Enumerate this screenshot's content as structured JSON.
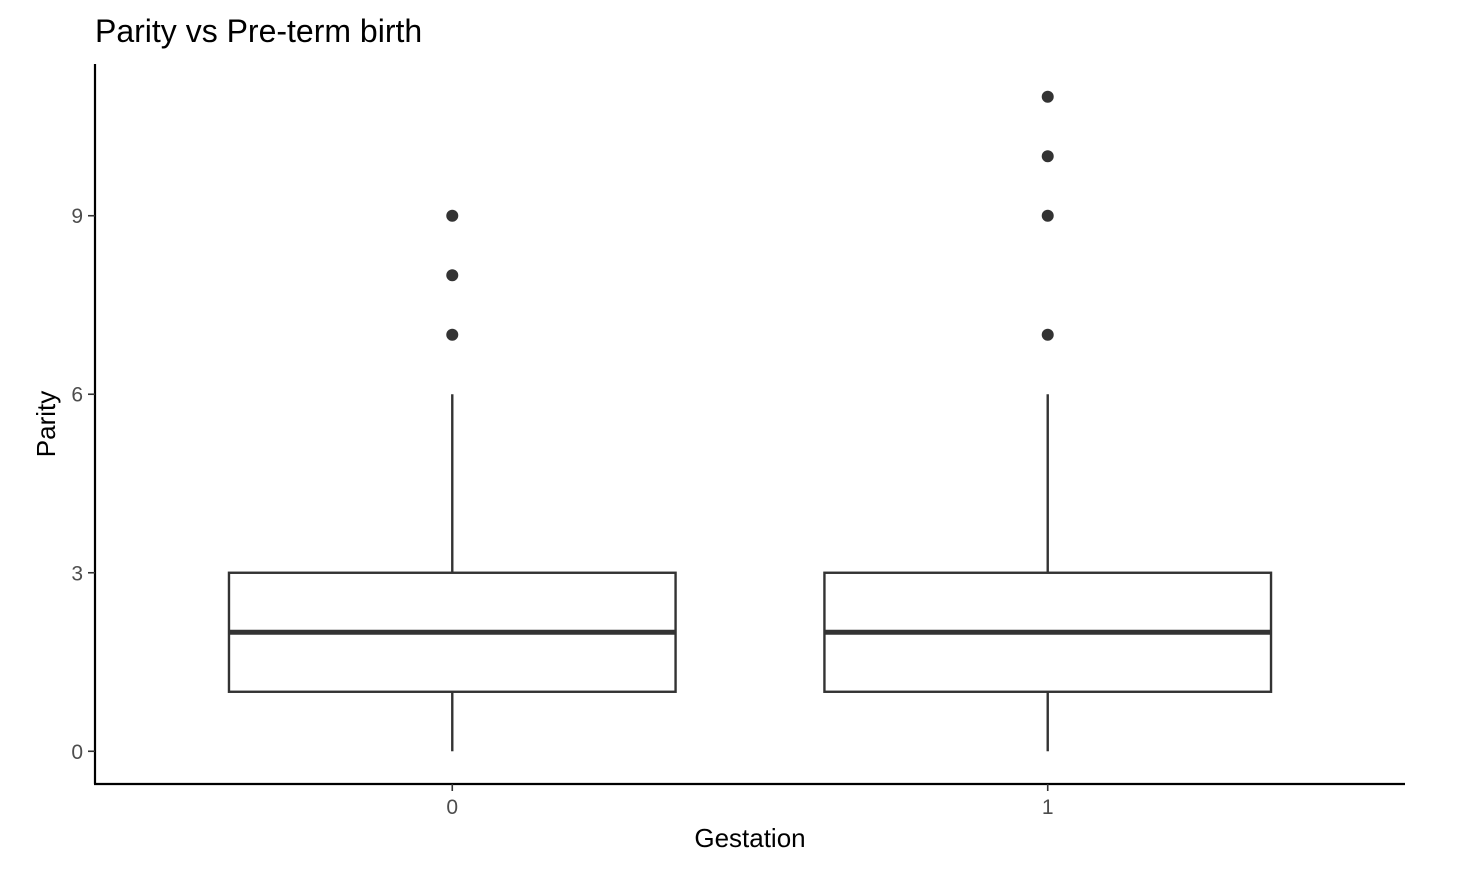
{
  "chart_data": {
    "type": "boxplot",
    "title": "Parity vs Pre-term birth",
    "xlabel": "Gestation",
    "ylabel": "Parity",
    "categories": [
      "0",
      "1"
    ],
    "y_ticks": [
      0,
      3,
      6,
      9
    ],
    "ylim": [
      -0.55,
      11.55
    ],
    "grid": false,
    "boxes": [
      {
        "category": "0",
        "whisker_low": 0,
        "q1": 1,
        "median": 2,
        "q3": 3,
        "whisker_high": 6,
        "outliers": [
          7,
          8,
          9
        ]
      },
      {
        "category": "1",
        "whisker_low": 0,
        "q1": 1,
        "median": 2,
        "q3": 3,
        "whisker_high": 6,
        "outliers": [
          7,
          9,
          10,
          11
        ]
      }
    ],
    "colors": {
      "box_stroke": "#333333",
      "box_fill": "#ffffff",
      "outlier": "#333333",
      "axis": "#000000",
      "tick_label": "#4d4d4d"
    }
  }
}
